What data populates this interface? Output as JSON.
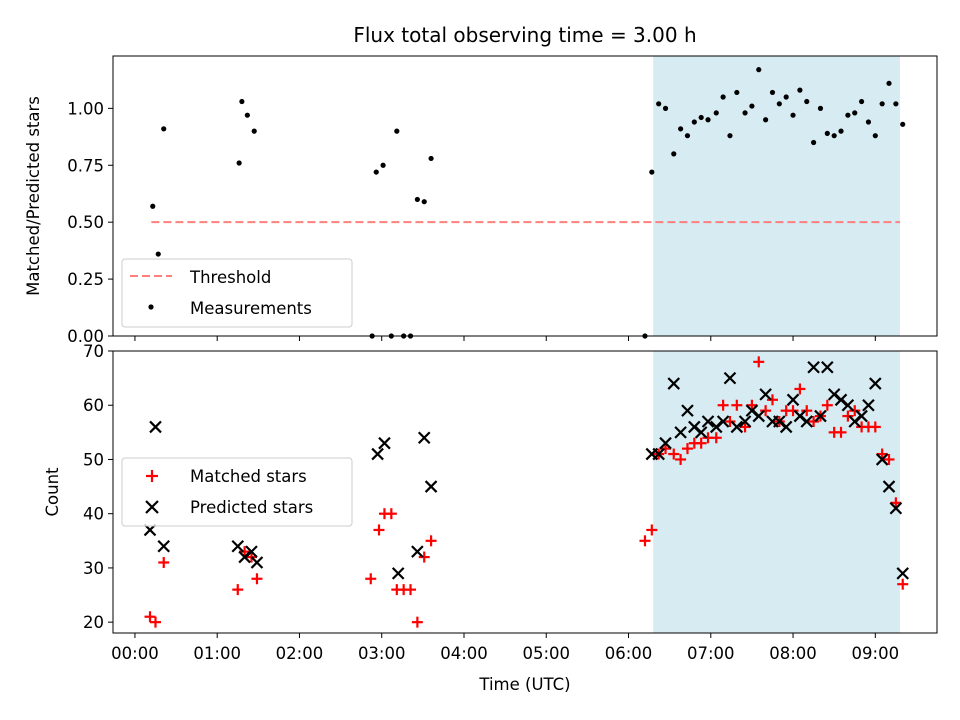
{
  "title": "Flux total observing time = 3.00 h",
  "xlabel": "Time (UTC)",
  "x_ticks": [
    "00:00",
    "01:00",
    "02:00",
    "03:00",
    "04:00",
    "05:00",
    "06:00",
    "07:00",
    "08:00",
    "09:00"
  ],
  "colors": {
    "threshold": "#ff7f7f",
    "measurements": "#000000",
    "matched": "#ff0000",
    "predicted": "#000000",
    "shade": "#add8e6"
  },
  "chart_data": [
    {
      "type": "scatter",
      "panel": "top",
      "ylabel": "Matched/Predicted stars",
      "x_range": [
        "23:44",
        "09:45"
      ],
      "ylim": [
        0,
        1.23
      ],
      "y_ticks": [
        "0.00",
        "0.25",
        "0.50",
        "0.75",
        "1.00"
      ],
      "shaded_span": [
        "06:18",
        "09:18"
      ],
      "legend_position": "lower-left",
      "threshold": {
        "name": "Threshold",
        "y": 0.5,
        "x_range": [
          "00:12",
          "09:18"
        ],
        "style": "dashed"
      },
      "series": [
        {
          "name": "Measurements",
          "points": [
            [
              "00:13",
              0.57
            ],
            [
              "00:17",
              0.36
            ],
            [
              "00:21",
              0.91
            ],
            [
              "01:16",
              0.76
            ],
            [
              "01:18",
              1.03
            ],
            [
              "01:22",
              0.97
            ],
            [
              "01:27",
              0.9
            ],
            [
              "02:53",
              0.0
            ],
            [
              "02:56",
              0.72
            ],
            [
              "03:01",
              0.75
            ],
            [
              "03:07",
              0.0
            ],
            [
              "03:11",
              0.9
            ],
            [
              "03:16",
              0.0
            ],
            [
              "03:21",
              0.0
            ],
            [
              "03:26",
              0.6
            ],
            [
              "03:31",
              0.59
            ],
            [
              "03:36",
              0.78
            ],
            [
              "06:12",
              0.0
            ],
            [
              "06:17",
              0.72
            ],
            [
              "06:22",
              1.02
            ],
            [
              "06:27",
              1.0
            ],
            [
              "06:33",
              0.8
            ],
            [
              "06:38",
              0.91
            ],
            [
              "06:43",
              0.88
            ],
            [
              "06:48",
              0.94
            ],
            [
              "06:53",
              0.96
            ],
            [
              "06:58",
              0.95
            ],
            [
              "07:04",
              0.98
            ],
            [
              "07:09",
              1.05
            ],
            [
              "07:14",
              0.88
            ],
            [
              "07:19",
              1.07
            ],
            [
              "07:25",
              0.98
            ],
            [
              "07:30",
              1.01
            ],
            [
              "07:35",
              1.17
            ],
            [
              "07:40",
              0.95
            ],
            [
              "07:45",
              1.07
            ],
            [
              "07:50",
              1.02
            ],
            [
              "07:55",
              1.05
            ],
            [
              "08:00",
              0.97
            ],
            [
              "08:05",
              1.08
            ],
            [
              "08:10",
              1.03
            ],
            [
              "08:15",
              0.85
            ],
            [
              "08:20",
              1.0
            ],
            [
              "08:25",
              0.89
            ],
            [
              "08:30",
              0.88
            ],
            [
              "08:35",
              0.9
            ],
            [
              "08:40",
              0.97
            ],
            [
              "08:45",
              0.98
            ],
            [
              "08:50",
              1.03
            ],
            [
              "08:55",
              0.94
            ],
            [
              "09:00",
              0.88
            ],
            [
              "09:05",
              1.02
            ],
            [
              "09:10",
              1.11
            ],
            [
              "09:15",
              1.02
            ],
            [
              "09:20",
              0.93
            ]
          ]
        }
      ]
    },
    {
      "type": "scatter",
      "panel": "bottom",
      "ylabel": "Count",
      "xlabel": "Time (UTC)",
      "x_range": [
        "23:44",
        "09:45"
      ],
      "ylim": [
        18,
        70
      ],
      "y_ticks": [
        "20",
        "30",
        "40",
        "50",
        "60",
        "70"
      ],
      "shaded_span": [
        "06:18",
        "09:18"
      ],
      "legend_position": "center-left",
      "series": [
        {
          "name": "Matched stars",
          "marker": "plus",
          "points": [
            [
              "00:11",
              21
            ],
            [
              "00:15",
              20
            ],
            [
              "00:21",
              31
            ],
            [
              "01:15",
              26
            ],
            [
              "01:20",
              33
            ],
            [
              "01:25",
              32
            ],
            [
              "01:29",
              28
            ],
            [
              "02:52",
              28
            ],
            [
              "02:58",
              37
            ],
            [
              "03:02",
              40
            ],
            [
              "03:07",
              40
            ],
            [
              "03:11",
              26
            ],
            [
              "03:16",
              26
            ],
            [
              "03:21",
              26
            ],
            [
              "03:26",
              20
            ],
            [
              "03:31",
              32
            ],
            [
              "03:36",
              35
            ],
            [
              "06:12",
              35
            ],
            [
              "06:17",
              37
            ],
            [
              "06:22",
              51
            ],
            [
              "06:27",
              52
            ],
            [
              "06:33",
              51
            ],
            [
              "06:38",
              50
            ],
            [
              "06:43",
              52
            ],
            [
              "06:48",
              53
            ],
            [
              "06:53",
              53
            ],
            [
              "06:58",
              54
            ],
            [
              "07:04",
              54
            ],
            [
              "07:09",
              60
            ],
            [
              "07:14",
              57
            ],
            [
              "07:19",
              60
            ],
            [
              "07:25",
              56
            ],
            [
              "07:30",
              60
            ],
            [
              "07:35",
              68
            ],
            [
              "07:40",
              59
            ],
            [
              "07:45",
              61
            ],
            [
              "07:50",
              57
            ],
            [
              "07:55",
              59
            ],
            [
              "08:00",
              59
            ],
            [
              "08:05",
              63
            ],
            [
              "08:10",
              59
            ],
            [
              "08:15",
              57
            ],
            [
              "08:20",
              58
            ],
            [
              "08:25",
              60
            ],
            [
              "08:30",
              55
            ],
            [
              "08:35",
              55
            ],
            [
              "08:40",
              58
            ],
            [
              "08:45",
              59
            ],
            [
              "08:50",
              56
            ],
            [
              "08:55",
              56
            ],
            [
              "09:00",
              56
            ],
            [
              "09:05",
              51
            ],
            [
              "09:10",
              50
            ],
            [
              "09:15",
              42
            ],
            [
              "09:20",
              27
            ]
          ]
        },
        {
          "name": "Predicted stars",
          "marker": "x",
          "points": [
            [
              "00:11",
              37
            ],
            [
              "00:15",
              56
            ],
            [
              "00:21",
              34
            ],
            [
              "01:15",
              34
            ],
            [
              "01:20",
              32
            ],
            [
              "01:25",
              33
            ],
            [
              "01:29",
              31
            ],
            [
              "02:57",
              51
            ],
            [
              "03:02",
              53
            ],
            [
              "03:12",
              29
            ],
            [
              "03:26",
              33
            ],
            [
              "03:31",
              54
            ],
            [
              "03:36",
              45
            ],
            [
              "06:17",
              51
            ],
            [
              "06:22",
              51
            ],
            [
              "06:27",
              53
            ],
            [
              "06:33",
              64
            ],
            [
              "06:38",
              55
            ],
            [
              "06:43",
              59
            ],
            [
              "06:48",
              56
            ],
            [
              "06:53",
              55
            ],
            [
              "06:58",
              57
            ],
            [
              "07:04",
              56
            ],
            [
              "07:09",
              57
            ],
            [
              "07:14",
              65
            ],
            [
              "07:19",
              56
            ],
            [
              "07:25",
              57
            ],
            [
              "07:30",
              59
            ],
            [
              "07:35",
              58
            ],
            [
              "07:40",
              62
            ],
            [
              "07:45",
              57
            ],
            [
              "07:50",
              57
            ],
            [
              "07:55",
              56
            ],
            [
              "08:00",
              61
            ],
            [
              "08:05",
              58
            ],
            [
              "08:10",
              57
            ],
            [
              "08:15",
              67
            ],
            [
              "08:20",
              58
            ],
            [
              "08:25",
              67
            ],
            [
              "08:30",
              62
            ],
            [
              "08:35",
              61
            ],
            [
              "08:40",
              60
            ],
            [
              "08:45",
              57
            ],
            [
              "08:50",
              58
            ],
            [
              "08:55",
              60
            ],
            [
              "09:00",
              64
            ],
            [
              "09:05",
              50
            ],
            [
              "09:10",
              45
            ],
            [
              "09:15",
              41
            ],
            [
              "09:20",
              29
            ]
          ]
        }
      ]
    }
  ]
}
